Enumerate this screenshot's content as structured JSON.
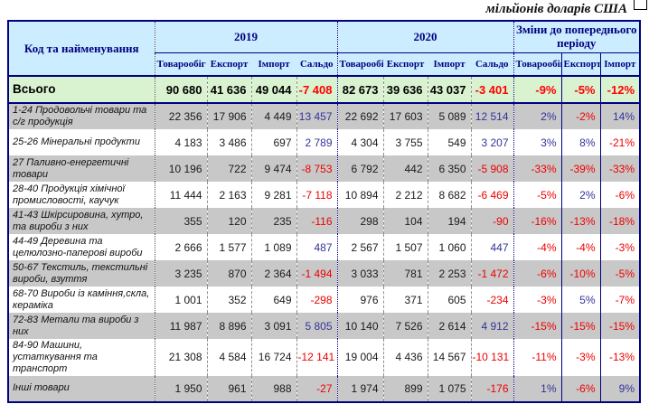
{
  "caption": "мільйонів доларів США",
  "table": {
    "col0_header": "Код та найменування",
    "groups": [
      {
        "label": "2019",
        "cols": [
          "Товарообіг",
          "Експорт",
          "Імпорт",
          "Сальдо"
        ]
      },
      {
        "label": "2020",
        "cols": [
          "Товарообіг",
          "Експорт",
          "Імпорт",
          "Сальдо"
        ]
      },
      {
        "label": "Зміни до попереднього періоду",
        "cols": [
          "Товарообіг",
          "Експорт",
          "Імпорт"
        ]
      }
    ],
    "total_row": {
      "label": "Всього",
      "y2019": [
        "90 680",
        "41 636",
        "49 044",
        "-7 408"
      ],
      "y2020": [
        "82 673",
        "39 636",
        "43 037",
        "-3 401"
      ],
      "changes": [
        "-9%",
        "-5%",
        "-12%"
      ]
    },
    "rows": [
      {
        "label": "1-24 Продовольчі товари та с/г продукція",
        "y2019": [
          "22 356",
          "17 906",
          "4 449",
          "13 457"
        ],
        "y2020": [
          "22 692",
          "17 603",
          "5 089",
          "12 514"
        ],
        "changes": [
          "2%",
          "-2%",
          "14%"
        ]
      },
      {
        "label": "25-26 Мінеральні продукти",
        "y2019": [
          "4 183",
          "3 486",
          "697",
          "2 789"
        ],
        "y2020": [
          "4 304",
          "3 755",
          "549",
          "3 207"
        ],
        "changes": [
          "3%",
          "8%",
          "-21%"
        ]
      },
      {
        "label": "27 Паливно-енергетичні товари",
        "y2019": [
          "10 196",
          "722",
          "9 474",
          "-8 753"
        ],
        "y2020": [
          "6 792",
          "442",
          "6 350",
          "-5 908"
        ],
        "changes": [
          "-33%",
          "-39%",
          "-33%"
        ]
      },
      {
        "label": "28-40 Продукція хімічної промисловості, каучук",
        "y2019": [
          "11 444",
          "2 163",
          "9 281",
          "-7 118"
        ],
        "y2020": [
          "10 894",
          "2 212",
          "8 682",
          "-6 469"
        ],
        "changes": [
          "-5%",
          "2%",
          "-6%"
        ]
      },
      {
        "label": "41-43 Шкірсировина, хутро, та вироби з них",
        "y2019": [
          "355",
          "120",
          "235",
          "-116"
        ],
        "y2020": [
          "298",
          "104",
          "194",
          "-90"
        ],
        "changes": [
          "-16%",
          "-13%",
          "-18%"
        ]
      },
      {
        "label": "44-49 Деревина та целюлозно-паперові вироби",
        "y2019": [
          "2 666",
          "1 577",
          "1 089",
          "487"
        ],
        "y2020": [
          "2 567",
          "1 507",
          "1 060",
          "447"
        ],
        "changes": [
          "-4%",
          "-4%",
          "-3%"
        ]
      },
      {
        "label": "50-67 Текстиль, текстильні вироби, взуття",
        "y2019": [
          "3 235",
          "870",
          "2 364",
          "-1 494"
        ],
        "y2020": [
          "3 033",
          "781",
          "2 253",
          "-1 472"
        ],
        "changes": [
          "-6%",
          "-10%",
          "-5%"
        ]
      },
      {
        "label": "68-70 Вироби із каміння,скла, кераміка",
        "y2019": [
          "1 001",
          "352",
          "649",
          "-298"
        ],
        "y2020": [
          "976",
          "371",
          "605",
          "-234"
        ],
        "changes": [
          "-3%",
          "5%",
          "-7%"
        ]
      },
      {
        "label": "72-83 Метали та вироби з них",
        "y2019": [
          "11 987",
          "8 896",
          "3 091",
          "5 805"
        ],
        "y2020": [
          "10 140",
          "7 526",
          "2 614",
          "4 912"
        ],
        "changes": [
          "-15%",
          "-15%",
          "-15%"
        ]
      },
      {
        "label": "84-90 Машини, устаткування та транспорт",
        "y2019": [
          "21 308",
          "4 584",
          "16 724",
          "-12 141"
        ],
        "y2020": [
          "19 004",
          "4 436",
          "14 567",
          "-10 131"
        ],
        "changes": [
          "-11%",
          "-3%",
          "-13%"
        ]
      },
      {
        "label": "Інші товари",
        "y2019": [
          "1 950",
          "961",
          "988",
          "-27"
        ],
        "y2020": [
          "1 974",
          "899",
          "1 075",
          "-176"
        ],
        "changes": [
          "1%",
          "-6%",
          "9%"
        ]
      }
    ]
  }
}
